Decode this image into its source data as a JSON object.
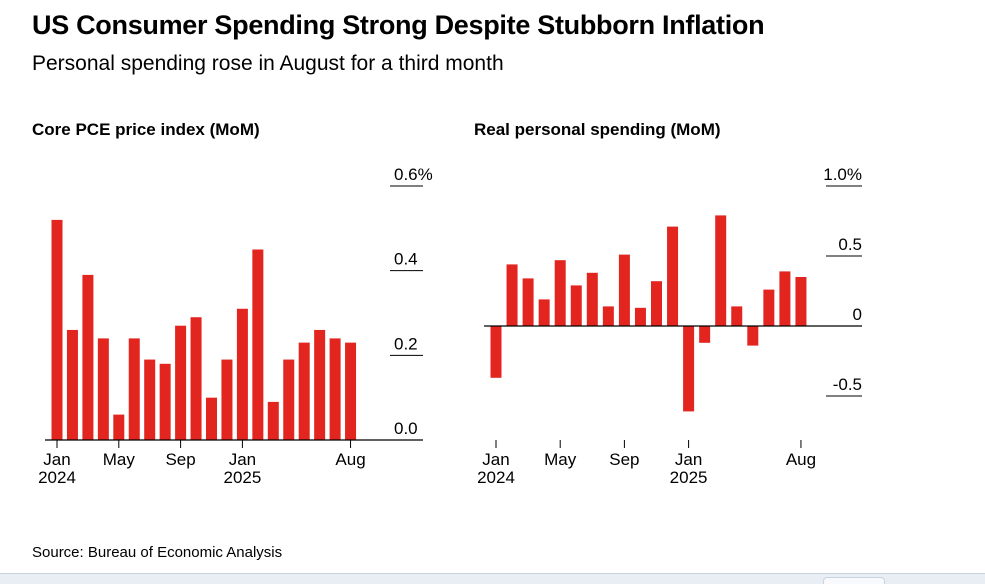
{
  "title": "US Consumer Spending Strong Despite Stubborn Inflation",
  "subtitle": "Personal spending rose in August for a third month",
  "source": "Source: Bureau of Economic Analysis",
  "colors": {
    "bar": "#e3251f",
    "axis": "#000000"
  },
  "chart_data": [
    {
      "type": "bar",
      "title": "Core PCE price index (MoM)",
      "xlabel": "",
      "ylabel": "",
      "ylim": [
        0,
        0.6
      ],
      "x": [
        "Jan 2024",
        "Feb 2024",
        "Mar 2024",
        "Apr 2024",
        "May 2024",
        "Jun 2024",
        "Jul 2024",
        "Aug 2024",
        "Sep 2024",
        "Oct 2024",
        "Nov 2024",
        "Dec 2024",
        "Jan 2025",
        "Feb 2025",
        "Mar 2025",
        "Apr 2025",
        "May 2025",
        "Jun 2025",
        "Jul 2025",
        "Aug 2025"
      ],
      "values": [
        0.52,
        0.26,
        0.39,
        0.24,
        0.06,
        0.24,
        0.19,
        0.18,
        0.27,
        0.29,
        0.1,
        0.19,
        0.31,
        0.45,
        0.09,
        0.19,
        0.23,
        0.26,
        0.24,
        0.23
      ],
      "y_ticks": [
        {
          "value": 0.6,
          "label": "0.6%"
        },
        {
          "value": 0.4,
          "label": "0.4"
        },
        {
          "value": 0.2,
          "label": "0.2"
        },
        {
          "value": 0.0,
          "label": "0.0"
        }
      ],
      "x_ticks": [
        {
          "index": 0,
          "label": "Jan",
          "sublabel": "2024"
        },
        {
          "index": 4,
          "label": "May",
          "sublabel": ""
        },
        {
          "index": 8,
          "label": "Sep",
          "sublabel": ""
        },
        {
          "index": 12,
          "label": "Jan",
          "sublabel": "2025"
        },
        {
          "index": 19,
          "label": "Aug",
          "sublabel": ""
        }
      ]
    },
    {
      "type": "bar",
      "title": "Real personal spending (MoM)",
      "xlabel": "",
      "ylabel": "",
      "ylim": [
        -1.0,
        1.0
      ],
      "x": [
        "Jan 2024",
        "Feb 2024",
        "Mar 2024",
        "Apr 2024",
        "May 2024",
        "Jun 2024",
        "Jul 2024",
        "Aug 2024",
        "Sep 2024",
        "Oct 2024",
        "Nov 2024",
        "Dec 2024",
        "Jan 2025",
        "Feb 2025",
        "Mar 2025",
        "Apr 2025",
        "May 2025",
        "Jun 2025",
        "Jul 2025",
        "Aug 2025"
      ],
      "values": [
        -0.37,
        0.44,
        0.34,
        0.19,
        0.47,
        0.29,
        0.38,
        0.14,
        0.51,
        0.13,
        0.32,
        0.71,
        -0.61,
        -0.12,
        0.79,
        0.14,
        -0.14,
        0.26,
        0.39,
        0.35
      ],
      "y_ticks": [
        {
          "value": 1.0,
          "label": "1.0%"
        },
        {
          "value": 0.5,
          "label": "0.5"
        },
        {
          "value": 0.0,
          "label": "0"
        },
        {
          "value": -0.5,
          "label": "-0.5"
        }
      ],
      "x_ticks": [
        {
          "index": 0,
          "label": "Jan",
          "sublabel": "2024"
        },
        {
          "index": 4,
          "label": "May",
          "sublabel": ""
        },
        {
          "index": 8,
          "label": "Sep",
          "sublabel": ""
        },
        {
          "index": 12,
          "label": "Jan",
          "sublabel": "2025"
        },
        {
          "index": 19,
          "label": "Aug",
          "sublabel": ""
        }
      ]
    }
  ]
}
